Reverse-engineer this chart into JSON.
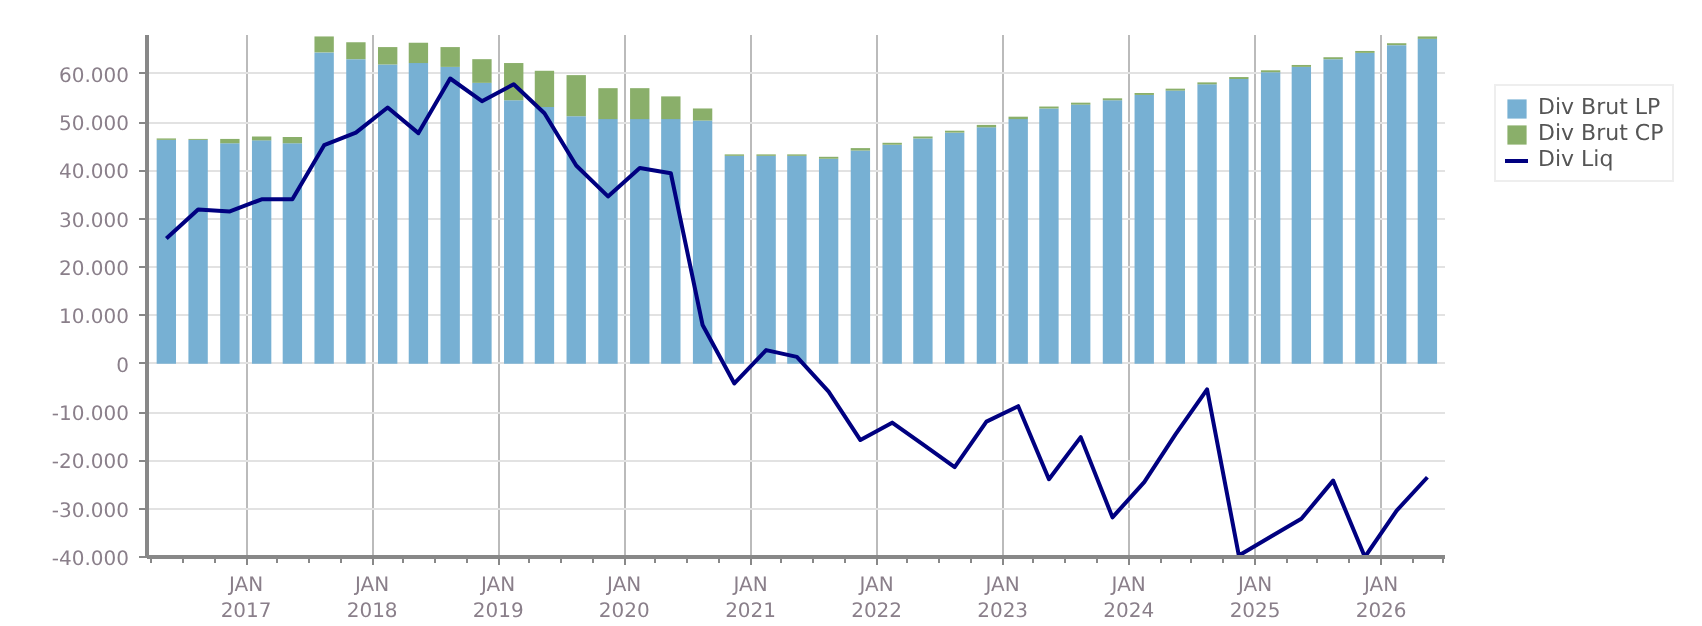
{
  "chart_data": {
    "type": "bar",
    "stacked": true,
    "x": [
      "2016-05-15",
      "2016-08-15",
      "2016-11-15",
      "2017-02-15",
      "2017-05-15",
      "2017-08-15",
      "2017-11-15",
      "2018-02-15",
      "2018-05-15",
      "2018-08-15",
      "2018-11-15",
      "2019-02-15",
      "2019-05-15",
      "2019-08-15",
      "2019-11-15",
      "2020-02-15",
      "2020-05-15",
      "2020-08-15",
      "2020-11-15",
      "2021-02-15",
      "2021-05-15",
      "2021-08-15",
      "2021-11-15",
      "2022-02-15",
      "2022-05-15",
      "2022-08-15",
      "2022-11-15",
      "2023-02-15",
      "2023-05-15",
      "2023-08-15",
      "2023-11-15",
      "2024-02-15",
      "2024-05-15",
      "2024-08-15",
      "2024-11-15",
      "2025-02-15",
      "2025-05-15",
      "2025-08-15",
      "2025-11-15",
      "2026-02-15",
      "2026-05-15"
    ],
    "series": [
      {
        "name": "Div Brut LP",
        "color": "#77b0d3",
        "values": [
          46300,
          46300,
          45600,
          46200,
          45600,
          64400,
          63000,
          61900,
          62200,
          61400,
          58100,
          54500,
          53100,
          51200,
          50600,
          50600,
          50600,
          50300,
          43000,
          43000,
          43000,
          42400,
          44100,
          45300,
          46600,
          47800,
          48900,
          50600,
          52800,
          53600,
          54500,
          55600,
          56500,
          57800,
          58900,
          60300,
          61400,
          63000,
          64300,
          65900,
          67200
        ]
      },
      {
        "name": "Div Brut CP",
        "color": "#8aaf6a",
        "values": [
          300,
          200,
          900,
          800,
          1300,
          3300,
          3500,
          3600,
          4200,
          4100,
          4900,
          7700,
          7500,
          8500,
          6400,
          6400,
          4700,
          2500,
          300,
          300,
          300,
          400,
          500,
          400,
          400,
          400,
          500,
          500,
          400,
          400,
          400,
          400,
          400,
          400,
          400,
          400,
          400,
          400,
          400,
          400,
          500
        ]
      },
      {
        "name": "Div Liq",
        "type": "line",
        "color": "#000080",
        "values": [
          25900,
          31900,
          31500,
          34000,
          34000,
          45200,
          47800,
          53000,
          47700,
          59000,
          54300,
          57800,
          51800,
          41000,
          34600,
          40500,
          39400,
          8000,
          -4100,
          2800,
          1400,
          -5800,
          -15800,
          -12200,
          -16700,
          -21400,
          -12000,
          -8800,
          -23900,
          -15200,
          -31800,
          -24500,
          -14700,
          -5300,
          -39700,
          -35800,
          -32100,
          -24200,
          -40000,
          -30400,
          -23500
        ]
      }
    ],
    "xlim": [
      "2016-03-20",
      "2026-07-05"
    ],
    "xticks": [
      {
        "value": "2017-01-01",
        "label": "JAN\n2017"
      },
      {
        "value": "2018-01-01",
        "label": "JAN\n2018"
      },
      {
        "value": "2019-01-01",
        "label": "JAN\n2019"
      },
      {
        "value": "2020-01-01",
        "label": "JAN\n2020"
      },
      {
        "value": "2021-01-01",
        "label": "JAN\n2021"
      },
      {
        "value": "2022-01-01",
        "label": "JAN\n2022"
      },
      {
        "value": "2023-01-01",
        "label": "JAN\n2023"
      },
      {
        "value": "2024-01-01",
        "label": "JAN\n2024"
      },
      {
        "value": "2025-01-01",
        "label": "JAN\n2025"
      },
      {
        "value": "2026-01-01",
        "label": "JAN\n2026"
      }
    ],
    "ylim": [
      -40000,
      68000
    ],
    "yticks": [
      {
        "value": -40000,
        "label": "-40.000"
      },
      {
        "value": -30000,
        "label": "-30.000"
      },
      {
        "value": -20000,
        "label": "-20.000"
      },
      {
        "value": -10000,
        "label": "-10.000"
      },
      {
        "value": 0,
        "label": "0"
      },
      {
        "value": 10000,
        "label": "10.000"
      },
      {
        "value": 20000,
        "label": "20.000"
      },
      {
        "value": 30000,
        "label": "30.000"
      },
      {
        "value": 40000,
        "label": "40.000"
      },
      {
        "value": 50000,
        "label": "50.000"
      },
      {
        "value": 60000,
        "label": "60.000"
      }
    ],
    "grid": true,
    "legend": "top right"
  }
}
